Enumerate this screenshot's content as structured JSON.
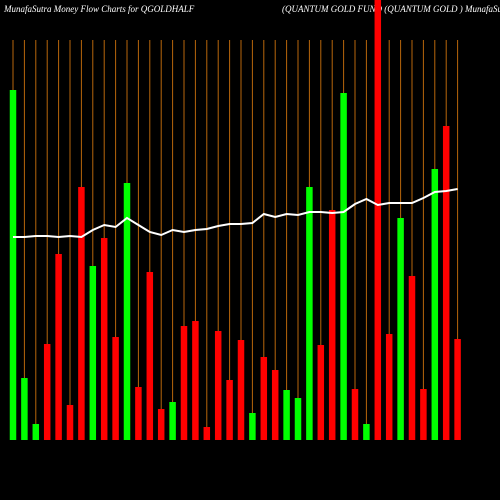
{
  "chart_data": {
    "type": "bar",
    "title": "MunafaSutra  Money Flow  Charts for QGOLDHALF",
    "subtitle": "(QUANTUM GOLD FUND (QUANTUM GOLD ) MunafaSutra.com",
    "categories": [
      null,
      null,
      null,
      null,
      null,
      null,
      null,
      null,
      null,
      null,
      null,
      null,
      null,
      null,
      null,
      null,
      null,
      null,
      null,
      null,
      null,
      null,
      null,
      null,
      null,
      null,
      null,
      null,
      null,
      null,
      null,
      null,
      null,
      null,
      null,
      null,
      null,
      null,
      null,
      null
    ],
    "ylim": [
      0,
      440
    ],
    "grid": true,
    "grid_color": "#b8660b",
    "series": [
      {
        "type": "bar",
        "values": [
          350,
          62,
          16,
          96,
          186,
          35,
          253,
          174,
          202,
          103,
          257,
          53,
          168,
          31,
          38,
          114,
          119,
          13,
          109,
          60,
          100,
          27,
          83,
          70,
          50,
          42,
          253,
          95,
          230,
          347,
          51,
          16,
          440,
          106,
          222,
          164,
          51,
          271,
          314,
          101
        ],
        "colors": [
          "#00ff00",
          "#00ff00",
          "#00ff00",
          "#ff0000",
          "#ff0000",
          "#ff0000",
          "#ff0000",
          "#00ff00",
          "#ff0000",
          "#ff0000",
          "#00ff00",
          "#ff0000",
          "#ff0000",
          "#ff0000",
          "#00ff00",
          "#ff0000",
          "#ff0000",
          "#ff0000",
          "#ff0000",
          "#ff0000",
          "#ff0000",
          "#00ff00",
          "#ff0000",
          "#ff0000",
          "#00ff00",
          "#00ff00",
          "#00ff00",
          "#ff0000",
          "#ff0000",
          "#00ff00",
          "#ff0000",
          "#00ff00",
          "#ff0000",
          "#ff0000",
          "#00ff00",
          "#ff0000",
          "#ff0000",
          "#00ff00",
          "#ff0000",
          "#ff0000"
        ]
      },
      {
        "type": "line",
        "color": "#ffffff",
        "values": [
          203,
          203,
          204,
          204,
          203,
          204,
          203,
          210,
          215,
          213,
          222,
          215,
          208,
          205,
          210,
          208,
          210,
          211,
          214,
          216,
          216,
          217,
          226,
          223,
          226,
          225,
          228,
          228,
          227,
          228,
          236,
          241,
          235,
          237,
          237,
          237,
          242,
          248,
          249,
          251
        ]
      }
    ]
  }
}
